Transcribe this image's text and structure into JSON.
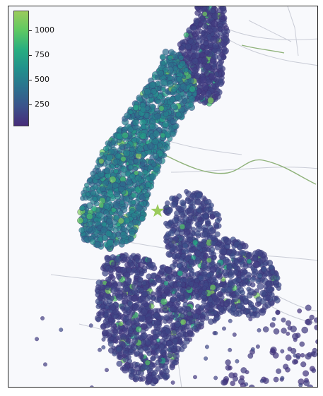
{
  "colorbar": {
    "ticks": [
      {
        "label": "1000",
        "value": 1000
      },
      {
        "label": "750",
        "value": 750
      },
      {
        "label": "500",
        "value": 500
      },
      {
        "label": "250",
        "value": 250
      }
    ],
    "range": [
      25,
      1200
    ],
    "colors": [
      "#472c7a",
      "#3b528b",
      "#2c728e",
      "#21918c",
      "#28ae80",
      "#5ec962",
      "#9bcb5c"
    ]
  },
  "style": {
    "background": "#f8f9fc",
    "water_color": "#f8f9fc",
    "road_color": "#c9ccd6",
    "rail_color": "#8fb27a",
    "star_color": "#9bcb5c"
  }
}
